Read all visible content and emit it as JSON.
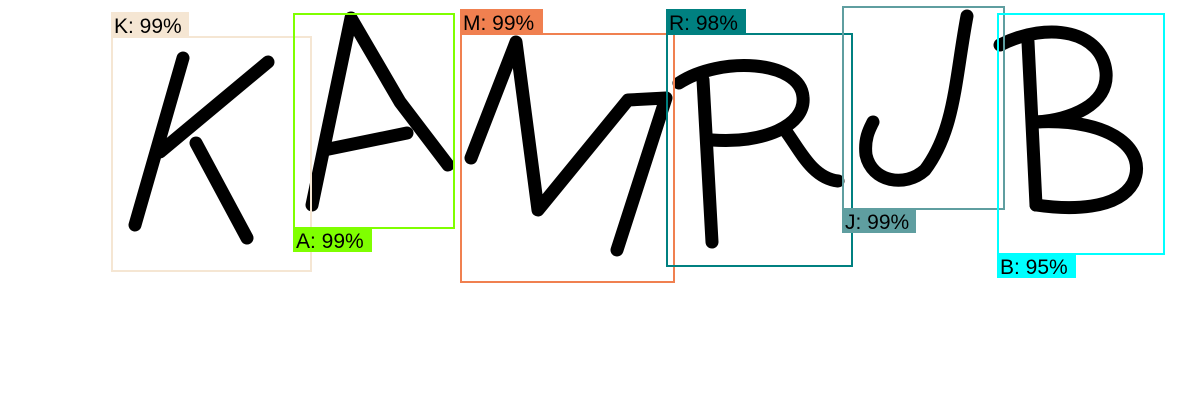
{
  "detections": [
    {
      "label": "K: 99%",
      "character": "K",
      "confidence": 99,
      "color": "#F5E6D3"
    },
    {
      "label": "A: 99%",
      "character": "A",
      "confidence": 99,
      "color": "#7FFF00"
    },
    {
      "label": "M: 99%",
      "character": "M",
      "confidence": 99,
      "color": "#F08050"
    },
    {
      "label": "R: 98%",
      "character": "R",
      "confidence": 98,
      "color": "#008080"
    },
    {
      "label": "J: 99%",
      "character": "J",
      "confidence": 99,
      "color": "#5F9EA0"
    },
    {
      "label": "B: 95%",
      "character": "B",
      "confidence": 95,
      "color": "#00FFFF"
    }
  ]
}
